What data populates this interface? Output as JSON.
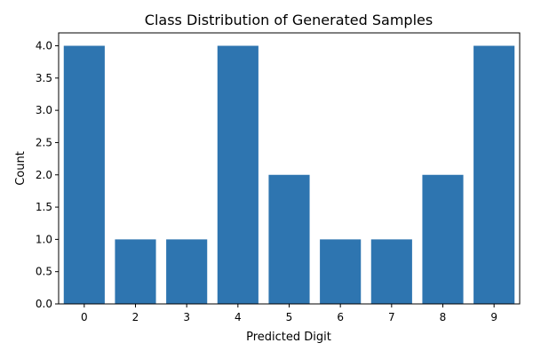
{
  "chart_data": {
    "type": "bar",
    "title": "Class Distribution of Generated Samples",
    "xlabel": "Predicted Digit",
    "ylabel": "Count",
    "categories": [
      "0",
      "2",
      "3",
      "4",
      "5",
      "6",
      "7",
      "8",
      "9"
    ],
    "values": [
      4,
      1,
      1,
      4,
      2,
      1,
      1,
      2,
      4
    ],
    "ylim": [
      0,
      4.2
    ],
    "yticks": [
      "0.0",
      "0.5",
      "1.0",
      "1.5",
      "2.0",
      "2.5",
      "3.0",
      "3.5",
      "4.0"
    ],
    "grid": false,
    "bar_color": "#2e75b0"
  }
}
